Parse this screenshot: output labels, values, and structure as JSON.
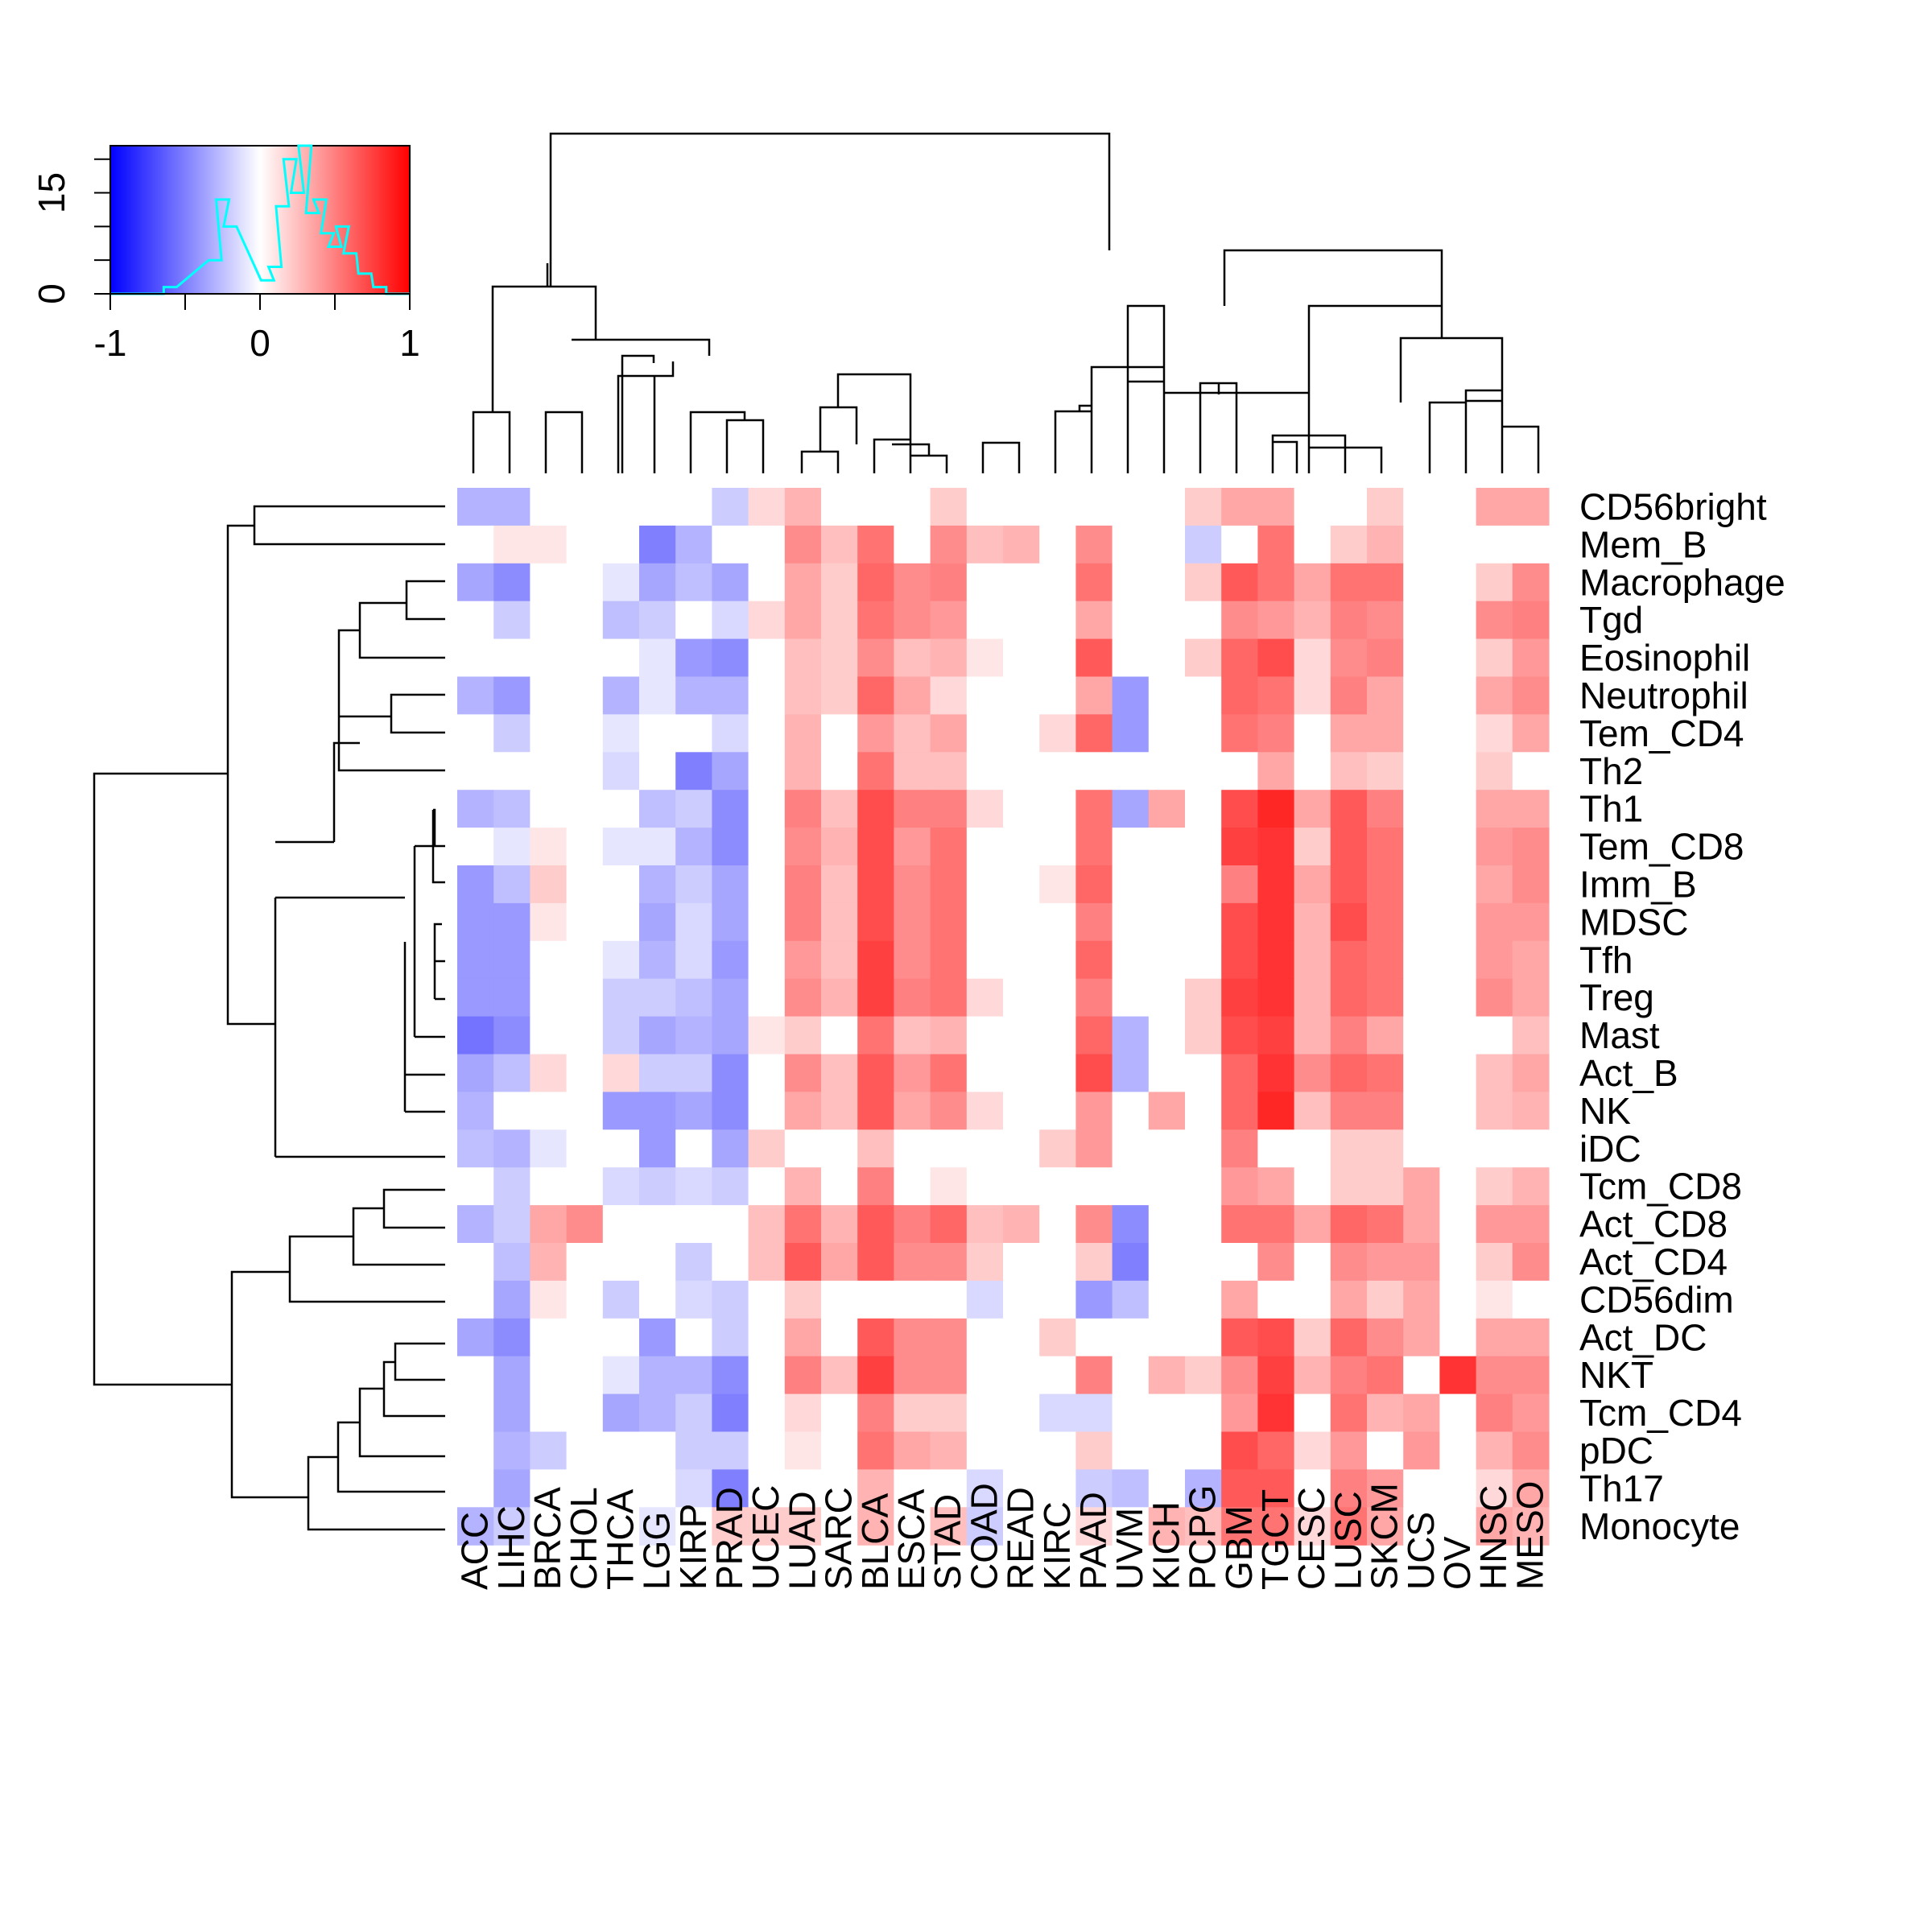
{
  "chart_data": {
    "type": "heatmap",
    "title": "",
    "color_scale": {
      "low": "#0000ff",
      "mid": "#ffffff",
      "high": "#ff0000",
      "range": [
        -1,
        1
      ],
      "ticks": [
        -1,
        0,
        1
      ],
      "tick_labels": [
        "-1",
        "0",
        "1"
      ],
      "count_ticks": [
        0,
        15
      ],
      "count_tick_labels": [
        "0",
        "15"
      ],
      "histogram_color": "#00ffff",
      "histogram_bins": [
        -0.6,
        -0.3,
        -0.25,
        -0.2,
        0.05,
        0.1,
        0.15,
        0.2,
        0.25,
        0.3,
        0.35,
        0.4,
        0.45,
        0.5,
        0.55,
        0.6,
        0.7,
        0.8
      ],
      "histogram_counts": [
        1,
        5,
        14,
        10,
        2,
        4,
        13,
        20,
        15,
        22,
        12,
        14,
        9,
        7,
        10,
        6,
        3,
        1
      ]
    },
    "columns": [
      "ACC",
      "LIHC",
      "BRCA",
      "CHOL",
      "THCA",
      "LGG",
      "KIRP",
      "PRAD",
      "UCEC",
      "LUAD",
      "SARC",
      "BLCA",
      "ESCA",
      "STAD",
      "COAD",
      "READ",
      "KIRC",
      "PAAD",
      "UVM",
      "KICH",
      "PCPG",
      "GBM",
      "TGCT",
      "CESC",
      "LUSC",
      "SKCM",
      "UCS",
      "OV",
      "HNSC",
      "MESO"
    ],
    "rows": [
      "CD56bright",
      "Mem_B",
      "Macrophage",
      "Tgd",
      "Eosinophil",
      "Neutrophil",
      "Tem_CD4",
      "Th2",
      "Th1",
      "Tem_CD8",
      "Imm_B",
      "MDSC",
      "Tfh",
      "Treg",
      "Mast",
      "Act_B",
      "NK",
      "iDC",
      "Tcm_CD8",
      "Act_CD8",
      "Act_CD4",
      "CD56dim",
      "Act_DC",
      "NKT",
      "Tcm_CD4",
      "pDC",
      "Th17",
      "Monocyte"
    ],
    "values": [
      [
        -0.3,
        -0.3,
        0,
        0,
        0,
        0,
        0,
        -0.2,
        0.15,
        0.3,
        0,
        0,
        0,
        0.2,
        0,
        0,
        0,
        0,
        0,
        0,
        0.2,
        0.35,
        0.35,
        0,
        0,
        0.2,
        0,
        0,
        0.35,
        0.35
      ],
      [
        0,
        0.1,
        0.1,
        0,
        0,
        -0.5,
        -0.3,
        0,
        0,
        0.45,
        0.25,
        0.55,
        0,
        0.45,
        0.25,
        0.3,
        0,
        0.45,
        0,
        0,
        -0.2,
        0,
        0.55,
        0,
        0.2,
        0.3,
        0,
        0,
        0,
        0
      ],
      [
        -0.35,
        -0.45,
        0,
        0,
        -0.1,
        -0.35,
        -0.25,
        -0.35,
        0,
        0.35,
        0.2,
        0.6,
        0.45,
        0.5,
        0,
        0,
        0,
        0.55,
        0,
        0,
        0.2,
        0.65,
        0.55,
        0.35,
        0.55,
        0.55,
        0,
        0,
        0.2,
        0.45
      ],
      [
        0,
        -0.2,
        0,
        0,
        -0.25,
        -0.2,
        0,
        -0.15,
        0.15,
        0.35,
        0.2,
        0.55,
        0.45,
        0.4,
        0,
        0,
        0,
        0.35,
        0,
        0,
        0,
        0.45,
        0.4,
        0.3,
        0.5,
        0.45,
        0,
        0,
        0.45,
        0.5
      ],
      [
        0,
        0,
        0,
        0,
        0,
        -0.1,
        -0.4,
        -0.45,
        0,
        0.25,
        0.2,
        0.45,
        0.25,
        0.3,
        0.1,
        0,
        0,
        0.65,
        0,
        0,
        0.2,
        0.6,
        0.7,
        0.15,
        0.45,
        0.5,
        0,
        0,
        0.2,
        0.4
      ],
      [
        -0.3,
        -0.4,
        0,
        0,
        -0.3,
        -0.1,
        -0.3,
        -0.3,
        0,
        0.25,
        0.2,
        0.6,
        0.35,
        0.15,
        0,
        0,
        0,
        0.35,
        -0.4,
        0,
        0,
        0.6,
        0.55,
        0.15,
        0.5,
        0.35,
        0,
        0,
        0.35,
        0.45
      ],
      [
        0,
        -0.2,
        0,
        0,
        -0.1,
        0,
        0,
        -0.15,
        0,
        0.3,
        0,
        0.4,
        0.25,
        0.35,
        0,
        0,
        0.15,
        0.6,
        -0.4,
        0,
        0,
        0.55,
        0.5,
        0,
        0.35,
        0.35,
        0,
        0,
        0.15,
        0.35
      ],
      [
        0,
        0,
        0,
        0,
        -0.15,
        0,
        -0.5,
        -0.35,
        0,
        0.3,
        0,
        0.55,
        0.25,
        0.25,
        0,
        0,
        0,
        0,
        0,
        0,
        0,
        0,
        0.35,
        0,
        0.25,
        0.2,
        0,
        0,
        0.2,
        0
      ],
      [
        -0.3,
        -0.25,
        0,
        0,
        0,
        -0.25,
        -0.2,
        -0.45,
        0,
        0.5,
        0.25,
        0.7,
        0.5,
        0.5,
        0.15,
        0,
        0,
        0.55,
        -0.35,
        0.35,
        0,
        0.7,
        0.85,
        0.35,
        0.65,
        0.5,
        0,
        0,
        0.35,
        0.35
      ],
      [
        0,
        -0.1,
        0.1,
        0,
        -0.1,
        -0.1,
        -0.3,
        -0.45,
        0,
        0.45,
        0.3,
        0.7,
        0.4,
        0.55,
        0,
        0,
        0,
        0.55,
        0,
        0,
        0,
        0.75,
        0.8,
        0.2,
        0.65,
        0.55,
        0,
        0,
        0.4,
        0.45
      ],
      [
        -0.4,
        -0.25,
        0.2,
        0,
        0,
        -0.3,
        -0.2,
        -0.35,
        0,
        0.5,
        0.25,
        0.7,
        0.45,
        0.55,
        0,
        0,
        0.1,
        0.6,
        0,
        0,
        0,
        0.5,
        0.8,
        0.35,
        0.65,
        0.55,
        0,
        0,
        0.35,
        0.45
      ],
      [
        -0.4,
        -0.4,
        0.1,
        0,
        0,
        -0.35,
        -0.15,
        -0.35,
        0,
        0.5,
        0.25,
        0.7,
        0.45,
        0.55,
        0,
        0,
        0,
        0.5,
        0,
        0,
        0,
        0.7,
        0.8,
        0.3,
        0.7,
        0.55,
        0,
        0,
        0.4,
        0.4
      ],
      [
        -0.4,
        -0.4,
        0,
        0,
        -0.1,
        -0.3,
        -0.15,
        -0.4,
        0,
        0.4,
        0.25,
        0.75,
        0.45,
        0.55,
        0,
        0,
        0,
        0.6,
        0,
        0,
        0,
        0.7,
        0.8,
        0.3,
        0.6,
        0.55,
        0,
        0,
        0.4,
        0.35
      ],
      [
        -0.4,
        -0.4,
        0,
        0,
        -0.2,
        -0.2,
        -0.25,
        -0.35,
        0,
        0.45,
        0.3,
        0.75,
        0.5,
        0.55,
        0.15,
        0,
        0,
        0.5,
        0,
        0,
        0.2,
        0.75,
        0.8,
        0.3,
        0.6,
        0.55,
        0,
        0,
        0.45,
        0.35
      ],
      [
        -0.55,
        -0.45,
        0,
        0,
        -0.2,
        -0.35,
        -0.3,
        -0.35,
        0.1,
        0.2,
        0,
        0.55,
        0.25,
        0.3,
        0,
        0,
        0,
        0.6,
        -0.3,
        0,
        0.2,
        0.7,
        0.75,
        0.3,
        0.5,
        0.35,
        0,
        0,
        0,
        0.25
      ],
      [
        -0.35,
        -0.25,
        0.15,
        0,
        0.15,
        -0.2,
        -0.2,
        -0.45,
        0,
        0.45,
        0.25,
        0.65,
        0.4,
        0.55,
        0,
        0,
        0,
        0.7,
        -0.3,
        0,
        0,
        0.6,
        0.8,
        0.45,
        0.6,
        0.55,
        0,
        0,
        0.25,
        0.35
      ],
      [
        -0.3,
        0,
        0,
        0,
        -0.4,
        -0.4,
        -0.35,
        -0.45,
        0,
        0.35,
        0.25,
        0.65,
        0.35,
        0.45,
        0.15,
        0,
        0,
        0.4,
        0,
        0.35,
        0,
        0.6,
        0.85,
        0.25,
        0.5,
        0.5,
        0,
        0,
        0.25,
        0.3
      ],
      [
        -0.25,
        -0.3,
        -0.1,
        0,
        0,
        -0.4,
        0,
        -0.35,
        0.2,
        0,
        0,
        0.25,
        0,
        0,
        0,
        0,
        0.2,
        0.4,
        0,
        0,
        0,
        0.5,
        0,
        0,
        0.2,
        0.2,
        0,
        0,
        0,
        0
      ],
      [
        0,
        -0.2,
        0,
        0,
        -0.15,
        -0.2,
        -0.15,
        -0.2,
        0,
        0.3,
        0,
        0.5,
        0,
        0.1,
        0,
        0,
        0,
        0,
        0,
        0,
        0,
        0.4,
        0.35,
        0,
        0.2,
        0.2,
        0.35,
        0,
        0.2,
        0.3
      ],
      [
        -0.3,
        -0.2,
        0.35,
        0.45,
        0,
        0,
        0,
        0,
        0.25,
        0.55,
        0.3,
        0.65,
        0.5,
        0.6,
        0.25,
        0.3,
        0,
        0.45,
        -0.45,
        0,
        0,
        0.55,
        0.55,
        0.35,
        0.6,
        0.55,
        0.35,
        0,
        0.4,
        0.4
      ],
      [
        0,
        -0.25,
        0.3,
        0,
        0,
        0,
        -0.2,
        0,
        0.25,
        0.65,
        0.35,
        0.65,
        0.45,
        0.45,
        0.2,
        0,
        0,
        0.2,
        -0.5,
        0,
        0,
        0,
        0.45,
        0,
        0.45,
        0.4,
        0.4,
        0,
        0.2,
        0.45
      ],
      [
        0,
        -0.35,
        0.1,
        0,
        -0.2,
        0,
        -0.15,
        -0.2,
        0,
        0.2,
        0,
        0,
        0,
        0,
        -0.15,
        0,
        0,
        -0.4,
        -0.25,
        0,
        0,
        0.35,
        0,
        0,
        0.35,
        0.2,
        0.35,
        0,
        0.1,
        0
      ],
      [
        -0.35,
        -0.45,
        0,
        0,
        0,
        -0.4,
        0,
        -0.2,
        0,
        0.35,
        0,
        0.65,
        0.45,
        0.45,
        0,
        0,
        0.2,
        0,
        0,
        0,
        0,
        0.65,
        0.7,
        0.2,
        0.6,
        0.45,
        0.35,
        0,
        0.35,
        0.35
      ],
      [
        0,
        -0.35,
        0,
        0,
        -0.1,
        -0.3,
        -0.3,
        -0.45,
        0,
        0.5,
        0.25,
        0.75,
        0.45,
        0.45,
        0,
        0,
        0,
        0.5,
        0,
        0.3,
        0.2,
        0.45,
        0.75,
        0.3,
        0.5,
        0.55,
        0,
        0.8,
        0.45,
        0.45
      ],
      [
        0,
        -0.35,
        0,
        0,
        -0.35,
        -0.3,
        -0.2,
        -0.5,
        0,
        0.15,
        0,
        0.5,
        0.2,
        0.2,
        0,
        0,
        -0.15,
        -0.15,
        0,
        0,
        0,
        0.4,
        0.8,
        0,
        0.55,
        0.3,
        0.35,
        0,
        0.5,
        0.4
      ],
      [
        0,
        -0.3,
        -0.2,
        0,
        0,
        0,
        -0.2,
        -0.2,
        0,
        0.1,
        0,
        0.55,
        0.35,
        0.3,
        0,
        0,
        0,
        0.2,
        0,
        0,
        0,
        0.7,
        0.6,
        0.15,
        0.4,
        0,
        0.4,
        0,
        0.3,
        0.45
      ],
      [
        0,
        -0.35,
        0,
        0,
        0,
        0,
        -0.15,
        -0.5,
        0,
        0,
        0,
        0.3,
        0,
        0,
        -0.15,
        0,
        0,
        -0.2,
        -0.25,
        0,
        -0.3,
        0.65,
        0.65,
        0,
        0.5,
        0.4,
        0,
        0,
        0.15,
        0.35
      ],
      [
        -0.3,
        -0.2,
        0,
        0,
        0,
        -0.1,
        0,
        0.2,
        0.2,
        0.2,
        0,
        0.3,
        0,
        0.25,
        -0.2,
        0,
        0,
        0.15,
        0,
        0.3,
        0.25,
        0.55,
        0.55,
        0.15,
        0.55,
        0.35,
        0,
        0,
        0.35,
        0.3
      ]
    ]
  }
}
